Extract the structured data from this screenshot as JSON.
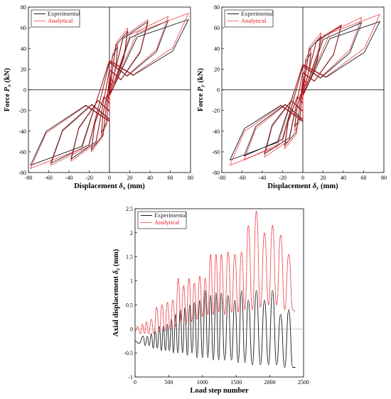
{
  "colors": {
    "experimental": "#1a1a1a",
    "analytical": "#e8141c"
  },
  "chart_data": [
    {
      "type": "line",
      "xlabel": "Displacement δx (mm)",
      "ylabel": "Force Px (kN)",
      "xlim": [
        -80,
        80
      ],
      "ylim": [
        -80,
        80
      ],
      "xticks": [
        "-80",
        "-60",
        "-40",
        "-20",
        "0",
        "20",
        "40",
        "60",
        "80"
      ],
      "yticks": [
        "-80",
        "-60",
        "-40",
        "-20",
        "0",
        "20",
        "40",
        "60",
        "80"
      ],
      "legend_position": "top-left",
      "grid": false,
      "series": [
        {
          "name": "Experimental",
          "style": "solid",
          "cycle_peaks": [
            [
              8,
              42,
              -8,
              -42
            ],
            [
              18,
              57,
              -18,
              -58
            ],
            [
              38,
              66,
              -38,
              -67
            ],
            [
              58,
              67,
              -58,
              -71
            ],
            [
              78,
              68,
              -78,
              -73
            ]
          ],
          "zero_force_intercepts_kN": [
            28,
            -30
          ]
        },
        {
          "name": "Analytical",
          "style": "dotted",
          "cycle_peaks": [
            [
              8,
              45,
              -8,
              -45
            ],
            [
              18,
              60,
              -18,
              -60
            ],
            [
              38,
              68,
              -38,
              -69
            ],
            [
              58,
              71,
              -58,
              -73
            ],
            [
              78,
              74,
              -78,
              -76
            ]
          ],
          "zero_force_intercepts_kN": [
            29,
            -31
          ]
        }
      ]
    },
    {
      "type": "line",
      "xlabel": "Displacement δy (mm)",
      "ylabel": "Force Py (kN)",
      "xlim": [
        -80,
        80
      ],
      "ylim": [
        -80,
        80
      ],
      "xticks": [
        "-80",
        "-60",
        "-40",
        "-20",
        "0",
        "20",
        "40",
        "60",
        "80"
      ],
      "yticks": [
        "-80",
        "-60",
        "-40",
        "-20",
        "0",
        "20",
        "40",
        "60",
        "80"
      ],
      "legend_position": "top-left",
      "grid": false,
      "series": [
        {
          "name": "Experimental",
          "style": "solid",
          "cycle_peaks": [
            [
              8,
              36,
              -8,
              -36
            ],
            [
              18,
              52,
              -18,
              -54
            ],
            [
              38,
              62,
              -38,
              -62
            ],
            [
              58,
              65,
              -58,
              -64
            ],
            [
              76,
              66,
              -72,
              -68
            ]
          ],
          "zero_force_intercepts_kN": [
            24,
            -30
          ]
        },
        {
          "name": "Analytical",
          "style": "dotted",
          "cycle_peaks": [
            [
              8,
              40,
              -8,
              -40
            ],
            [
              18,
              55,
              -18,
              -57
            ],
            [
              38,
              63,
              -38,
              -65
            ],
            [
              58,
              70,
              -58,
              -68
            ],
            [
              76,
              73,
              -72,
              -73
            ]
          ],
          "zero_force_intercepts_kN": [
            25,
            -31
          ]
        }
      ]
    },
    {
      "type": "line",
      "xlabel": "Load step number",
      "ylabel": "Axial displacement δz (mm)",
      "xlim": [
        0,
        2500
      ],
      "ylim": [
        -1,
        2.5
      ],
      "xticks": [
        "0",
        "500",
        "1000",
        "1500",
        "2000",
        "2500"
      ],
      "yticks": [
        "-1",
        "-0.5",
        "0",
        "0.5",
        "1",
        "1.5",
        "2",
        "2.5"
      ],
      "legend_position": "top-left",
      "grid": false,
      "series": [
        {
          "name": "Experimental",
          "style": "solid",
          "x": [
            0,
            60,
            120,
            150,
            180,
            210,
            240,
            270,
            300,
            330,
            360,
            390,
            420,
            450,
            480,
            510,
            540,
            570,
            600,
            635,
            670,
            705,
            740,
            775,
            810,
            845,
            880,
            920,
            960,
            1000,
            1040,
            1080,
            1120,
            1160,
            1200,
            1240,
            1280,
            1330,
            1380,
            1430,
            1480,
            1530,
            1580,
            1630,
            1680,
            1740,
            1800,
            1860,
            1920,
            1980,
            2040,
            2100,
            2160,
            2220,
            2280,
            2340,
            2380
          ],
          "values": [
            -0.25,
            -0.3,
            -0.15,
            -0.35,
            -0.15,
            -0.35,
            -0.1,
            -0.4,
            -0.05,
            -0.4,
            0.05,
            -0.45,
            0.05,
            -0.45,
            0.1,
            -0.45,
            0.2,
            -0.5,
            0.3,
            -0.5,
            0.4,
            -0.5,
            0.45,
            -0.55,
            0.5,
            -0.5,
            0.55,
            -0.6,
            0.6,
            -0.6,
            0.8,
            -0.6,
            0.7,
            -0.65,
            0.75,
            -0.65,
            0.75,
            -0.65,
            0.7,
            -0.65,
            0.6,
            -0.7,
            0.8,
            -0.7,
            0.6,
            -0.75,
            0.8,
            -0.75,
            0.6,
            -0.75,
            0.8,
            -0.75,
            0.3,
            -0.8,
            0.4,
            -0.8,
            -0.8
          ]
        },
        {
          "name": "Analytical",
          "style": "dotted",
          "x": [
            0,
            40,
            80,
            110,
            140,
            170,
            200,
            240,
            280,
            320,
            360,
            400,
            440,
            480,
            520,
            560,
            600,
            640,
            680,
            720,
            760,
            800,
            840,
            880,
            920,
            960,
            1000,
            1040,
            1080,
            1120,
            1160,
            1200,
            1240,
            1280,
            1330,
            1380,
            1430,
            1480,
            1530,
            1580,
            1630,
            1680,
            1740,
            1800,
            1860,
            1920,
            1980,
            2040,
            2100,
            2160,
            2220,
            2280,
            2340,
            2380
          ],
          "values": [
            -0.05,
            0.05,
            -0.1,
            0.1,
            -0.1,
            0.15,
            -0.1,
            0.2,
            -0.1,
            0.45,
            -0.05,
            0.5,
            -0.05,
            0.55,
            0.0,
            0.6,
            0.05,
            1.05,
            0.15,
            0.9,
            0.1,
            1.05,
            0.15,
            0.95,
            0.2,
            1.1,
            0.25,
            1.05,
            0.3,
            1.55,
            0.3,
            1.55,
            0.35,
            1.55,
            0.3,
            1.6,
            0.35,
            1.55,
            0.35,
            1.6,
            0.4,
            2.15,
            0.4,
            2.45,
            0.45,
            2.0,
            0.5,
            2.15,
            0.5,
            1.95,
            0.4,
            1.55,
            0.4,
            0.35
          ]
        }
      ]
    }
  ]
}
